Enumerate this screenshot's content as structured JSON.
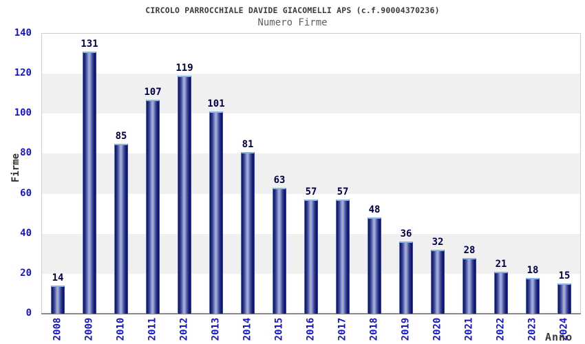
{
  "title": "CIRCOLO PARROCCHIALE DAVIDE GIACOMELLI APS (c.f.90004370236)",
  "subtitle": "Numero Firme",
  "chart_data": {
    "type": "bar",
    "title": "CIRCOLO PARROCCHIALE DAVIDE GIACOMELLI APS (c.f.90004370236)",
    "subtitle": "Numero Firme",
    "xlabel": "Anno",
    "ylabel": "Firme",
    "categories": [
      "2008",
      "2009",
      "2010",
      "2011",
      "2012",
      "2013",
      "2014",
      "2015",
      "2016",
      "2017",
      "2018",
      "2019",
      "2020",
      "2021",
      "2022",
      "2023",
      "2024"
    ],
    "values": [
      14,
      131,
      85,
      107,
      119,
      101,
      81,
      63,
      57,
      57,
      48,
      36,
      32,
      28,
      21,
      18,
      15
    ],
    "ylim": [
      0,
      140
    ],
    "ytick_step": 20,
    "yticks": [
      0,
      20,
      40,
      60,
      80,
      100,
      120,
      140
    ],
    "grid": "horizontal-alternating-bands",
    "legend": "none"
  },
  "colors": {
    "tick_label_blue": "#1414cc",
    "bar_value_label": "#000045",
    "title_text": "#3a3a3a",
    "subtitle_text": "#606060",
    "axis_title_text": "#2e2e2e",
    "band_gray": "#f0f0f0",
    "band_white": "#ffffff",
    "plot_border": "#cccccc",
    "axis_line": "#8a8a8a",
    "bar_dark_navy": "#0d0f4a",
    "bar_highlight": "#aab4e0",
    "bar_right_edge": "#2b3bd6",
    "bar_cap_blue": "#8ab6e6"
  }
}
